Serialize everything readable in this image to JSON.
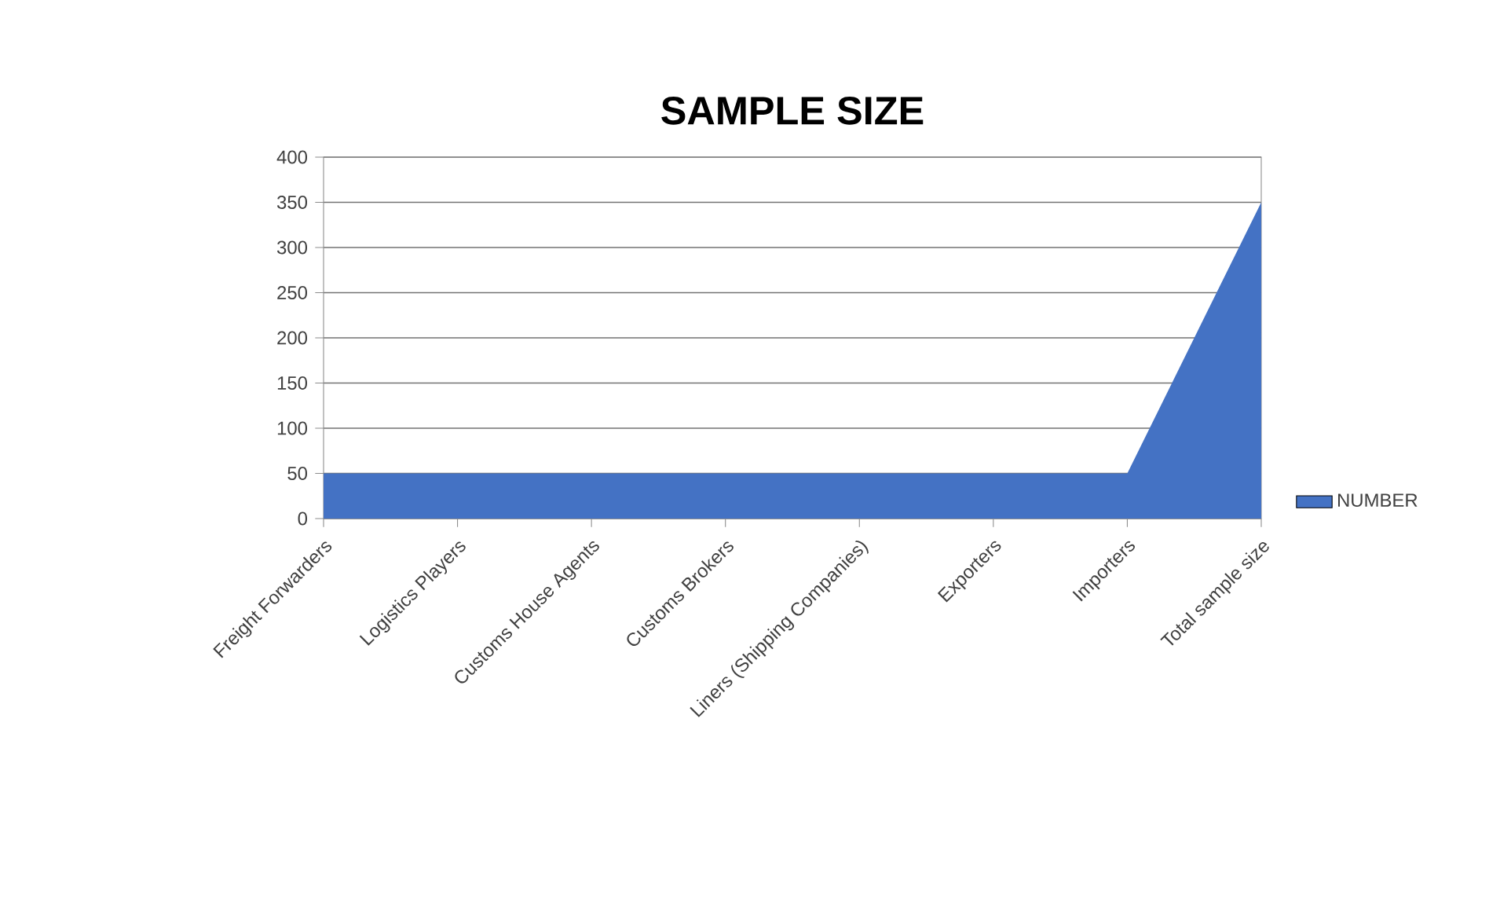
{
  "chart_data": {
    "type": "area",
    "title": "SAMPLE SIZE",
    "categories": [
      "Freight Forwarders",
      "Logistics Players",
      "Customs House Agents",
      "Customs Brokers",
      "Liners (Shipping Companies)",
      "Exporters",
      "Importers",
      "Total sample size"
    ],
    "series": [
      {
        "name": "NUMBER",
        "color": "#4472c4",
        "values": [
          50,
          50,
          50,
          50,
          50,
          50,
          50,
          350
        ]
      }
    ],
    "ylim": [
      0,
      400
    ],
    "yticks": [
      0,
      50,
      100,
      150,
      200,
      250,
      300,
      350,
      400
    ],
    "grid": "y",
    "legend": "right"
  }
}
